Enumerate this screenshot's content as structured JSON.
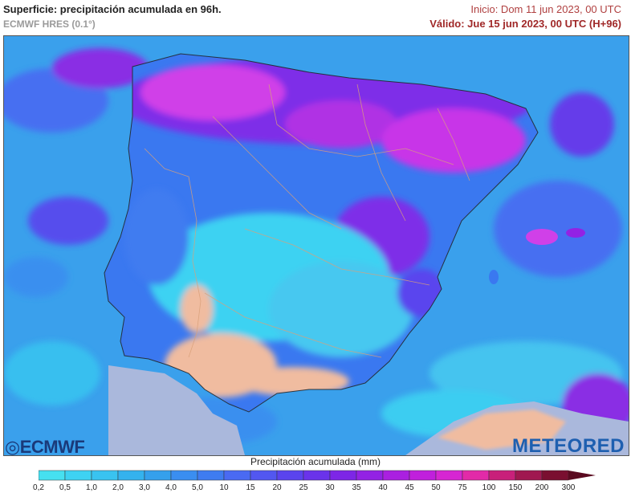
{
  "header": {
    "title": "Superficie: precipitación acumulada en 96h.",
    "model": "ECMWF HRES (0.1°)",
    "init": "Inicio: Dom 11 jun 2023, 00 UTC",
    "valid": "Válido: Jue 15 jun 2023, 00 UTC (H+96)"
  },
  "logos": {
    "left": "ECMWF",
    "right": "METEORED"
  },
  "legend": {
    "title": "Precipitación acumulada (mm)",
    "ticks": [
      "0,2",
      "0,5",
      "1,0",
      "2,0",
      "3,0",
      "4,0",
      "5,0",
      "10",
      "15",
      "20",
      "25",
      "30",
      "35",
      "40",
      "45",
      "50",
      "75",
      "100",
      "150",
      "200",
      "300"
    ],
    "colors": [
      "#46e0f0",
      "#3ed2f2",
      "#39c3f0",
      "#34b2ee",
      "#35a0ec",
      "#3a8ef0",
      "#3f7cf0",
      "#4a6af2",
      "#5257f0",
      "#5a44ee",
      "#6a33ea",
      "#7d26e6",
      "#9322e4",
      "#aa20e0",
      "#c020dc",
      "#d626d2",
      "#e22aa8",
      "#c8207a",
      "#a01850",
      "#7a0f30"
    ]
  },
  "map": {
    "region": "Península Ibérica",
    "land_fill": "#3a78f0",
    "sea_fill": "#3aa0ec",
    "dry_fill": "#f0bca0",
    "nodata_fill": "#aab8dc",
    "heavy_fill": "#d040e8",
    "moderate_fill": "#7e2ee8",
    "border_color": "#d9a07a"
  }
}
